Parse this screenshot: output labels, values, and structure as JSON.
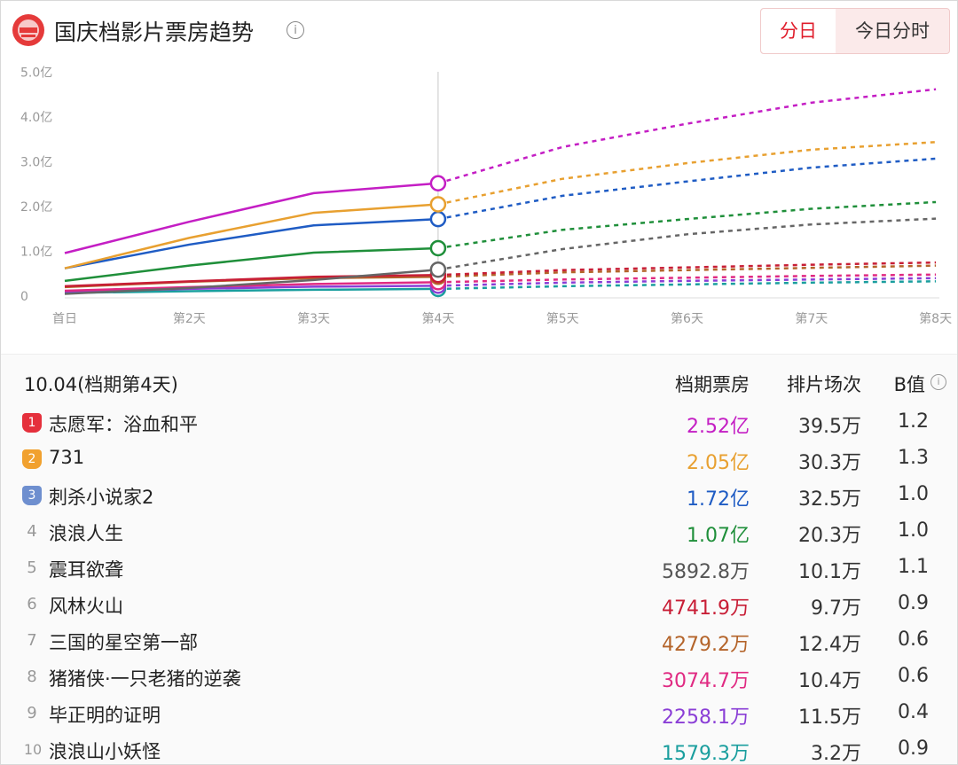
{
  "header": {
    "title": "国庆档影片票房趋势",
    "tabs": [
      {
        "label": "分日",
        "active": true
      },
      {
        "label": "今日分时",
        "active": false
      }
    ]
  },
  "chart_data": {
    "type": "line",
    "categories": [
      "首日",
      "第2天",
      "第3天",
      "第4天",
      "第5天",
      "第6天",
      "第7天",
      "第8天"
    ],
    "y_ticks": [
      "5.0亿",
      "4.0亿",
      "3.0亿",
      "2.0亿",
      "1.0亿",
      "0"
    ],
    "ylim": [
      0,
      5
    ],
    "actual_until_index": 3,
    "grid": false,
    "series": [
      {
        "name": "志愿军：浴血和平",
        "color": "#c41ec4",
        "values": [
          0.96,
          1.66,
          2.3,
          2.52,
          3.33,
          3.85,
          4.32,
          4.62
        ]
      },
      {
        "name": "731",
        "color": "#e8a030",
        "values": [
          0.62,
          1.3,
          1.86,
          2.05,
          2.62,
          2.97,
          3.27,
          3.44
        ]
      },
      {
        "name": "刺杀小说家2",
        "color": "#1f5cc4",
        "values": [
          0.62,
          1.15,
          1.58,
          1.72,
          2.24,
          2.56,
          2.87,
          3.07
        ]
      },
      {
        "name": "浪浪人生",
        "color": "#1f8f3a",
        "values": [
          0.34,
          0.68,
          0.97,
          1.07,
          1.48,
          1.72,
          1.95,
          2.1
        ]
      },
      {
        "name": "震耳欲聋",
        "color": "#666666",
        "values": [
          0.05,
          0.18,
          0.36,
          0.59,
          1.05,
          1.38,
          1.6,
          1.73
        ]
      },
      {
        "name": "风林火山",
        "color": "#c81e36",
        "values": [
          0.22,
          0.33,
          0.43,
          0.47,
          0.58,
          0.64,
          0.7,
          0.75
        ]
      },
      {
        "name": "三国的星空第一部",
        "color": "#b4642a",
        "values": [
          0.2,
          0.32,
          0.4,
          0.43,
          0.53,
          0.58,
          0.63,
          0.68
        ]
      },
      {
        "name": "猪猪侠·一只老猪的逆袭",
        "color": "#e02a82",
        "values": [
          0.12,
          0.2,
          0.27,
          0.31,
          0.37,
          0.41,
          0.45,
          0.48
        ]
      },
      {
        "name": "毕正明的证明",
        "color": "#8a3ed6",
        "values": [
          0.1,
          0.16,
          0.21,
          0.23,
          0.3,
          0.34,
          0.37,
          0.4
        ]
      },
      {
        "name": "浪浪山小妖怪",
        "color": "#1a9e9e",
        "values": [
          0.07,
          0.11,
          0.14,
          0.16,
          0.22,
          0.26,
          0.3,
          0.33
        ]
      }
    ]
  },
  "table": {
    "date": "10.04(档期第4天)",
    "columns": [
      "档期票房",
      "排片场次",
      "B值"
    ],
    "rows": [
      {
        "rank": "1",
        "name": "志愿军：浴血和平",
        "box": "2.52亿",
        "shows": "39.5万",
        "b": "1.2",
        "color": "#c41ec4"
      },
      {
        "rank": "2",
        "name": "731",
        "box": "2.05亿",
        "shows": "30.3万",
        "b": "1.3",
        "color": "#e8a030"
      },
      {
        "rank": "3",
        "name": "刺杀小说家2",
        "box": "1.72亿",
        "shows": "32.5万",
        "b": "1.0",
        "color": "#1f5cc4"
      },
      {
        "rank": "4",
        "name": "浪浪人生",
        "box": "1.07亿",
        "shows": "20.3万",
        "b": "1.0",
        "color": "#1f8f3a"
      },
      {
        "rank": "5",
        "name": "震耳欲聋",
        "box": "5892.8万",
        "shows": "10.1万",
        "b": "1.1",
        "color": "#555555"
      },
      {
        "rank": "6",
        "name": "风林火山",
        "box": "4741.9万",
        "shows": "9.7万",
        "b": "0.9",
        "color": "#c81e36"
      },
      {
        "rank": "7",
        "name": "三国的星空第一部",
        "box": "4279.2万",
        "shows": "12.4万",
        "b": "0.6",
        "color": "#b4642a"
      },
      {
        "rank": "8",
        "name": "猪猪侠·一只老猪的逆袭",
        "box": "3074.7万",
        "shows": "10.4万",
        "b": "0.6",
        "color": "#e02a82"
      },
      {
        "rank": "9",
        "name": "毕正明的证明",
        "box": "2258.1万",
        "shows": "11.5万",
        "b": "0.4",
        "color": "#8a3ed6"
      },
      {
        "rank": "10",
        "name": "浪浪山小妖怪",
        "box": "1579.3万",
        "shows": "3.2万",
        "b": "0.9",
        "color": "#1a9e9e"
      }
    ]
  },
  "colors": {
    "accent": "#e01e2c",
    "badge_1": "#e5303c",
    "badge_2": "#f1a12f",
    "badge_3": "#6e8fcf"
  }
}
